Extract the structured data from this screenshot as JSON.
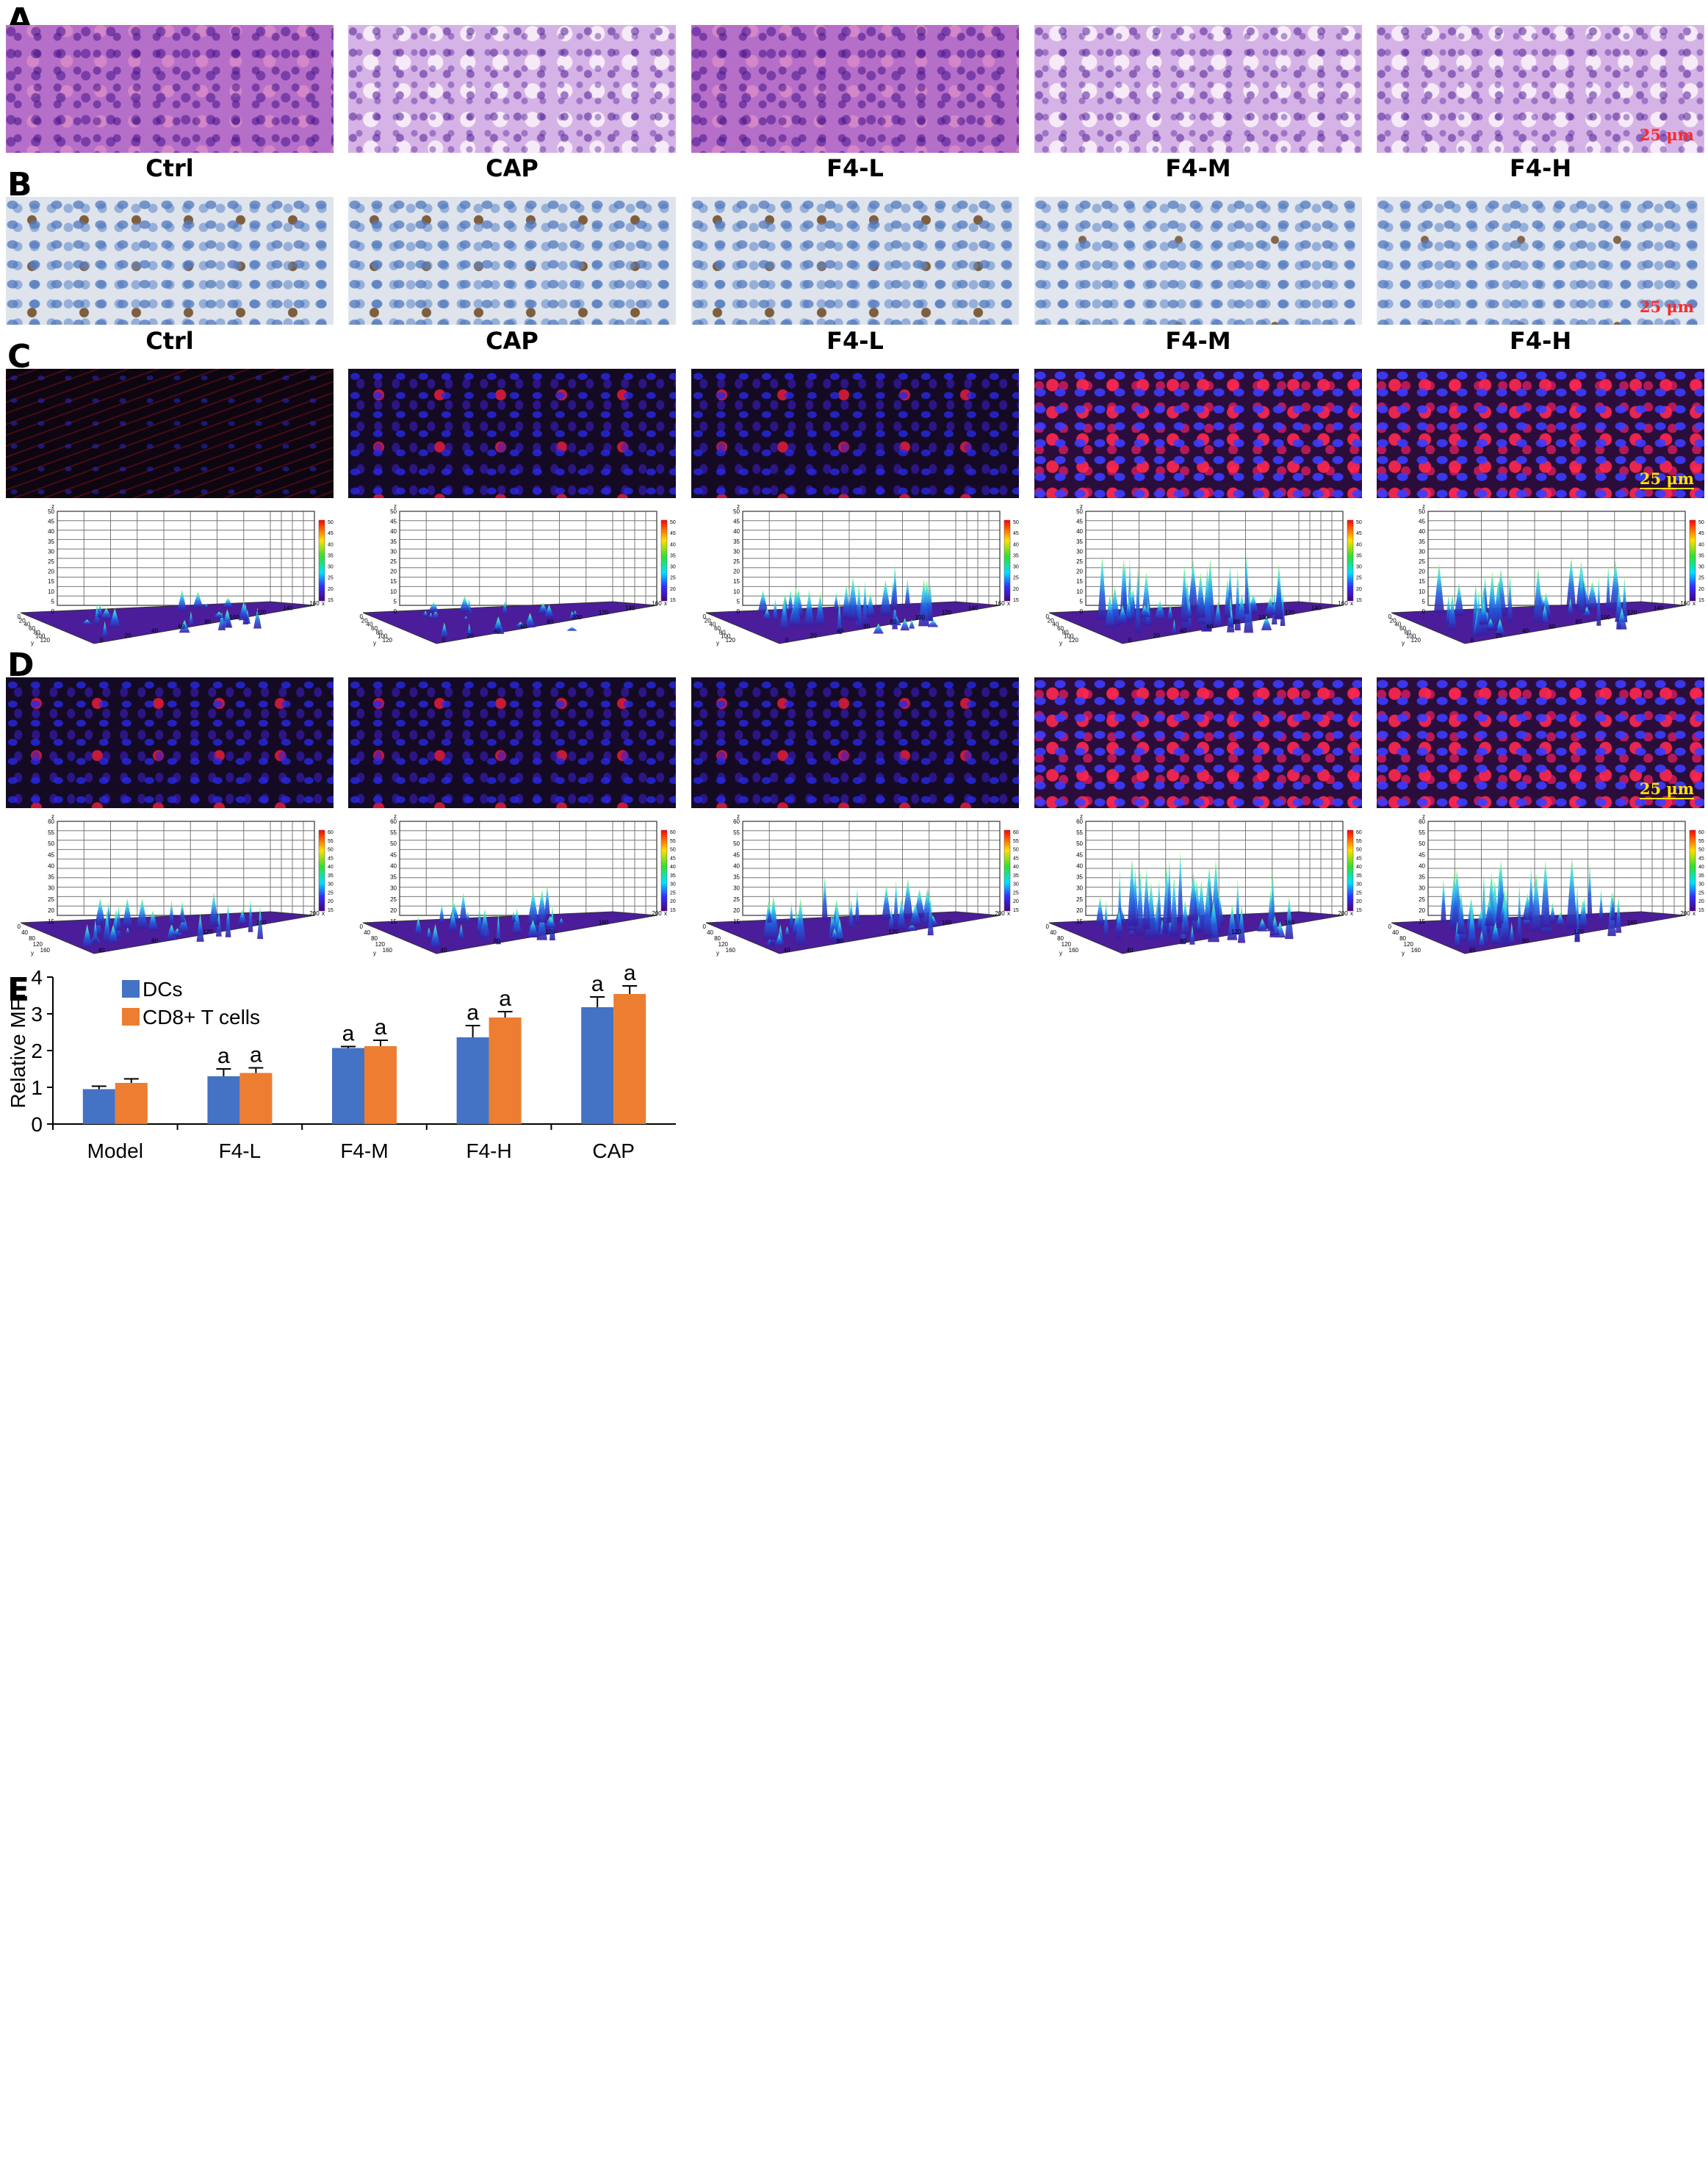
{
  "figure": {
    "panel_letters": [
      "A",
      "B",
      "C",
      "D",
      "E"
    ],
    "groups_AB": [
      "Ctrl",
      "CAP",
      "F4-L",
      "F4-M",
      "F4-H"
    ],
    "scale_label": "25 μm",
    "surface_C": {
      "z_ticks": [
        "0",
        "5",
        "10",
        "15",
        "20",
        "25",
        "30",
        "35",
        "40",
        "45",
        "50"
      ],
      "colorbar_ticks": [
        "50",
        "45",
        "40",
        "35",
        "30",
        "25",
        "20",
        "15"
      ],
      "x_ticks": [
        "0",
        "20",
        "40",
        "60",
        "80",
        "100",
        "120",
        "140",
        "160"
      ],
      "y_ticks": [
        "0",
        "20",
        "40",
        "60",
        "80",
        "100",
        "120"
      ],
      "x_label": "x",
      "y_label": "y",
      "z_label": "z",
      "peak_levels": [
        0.25,
        0.2,
        0.55,
        0.8,
        0.7
      ]
    },
    "surface_D": {
      "z_ticks": [
        "15",
        "20",
        "25",
        "30",
        "35",
        "40",
        "45",
        "50",
        "55",
        "60"
      ],
      "colorbar_ticks": [
        "60",
        "55",
        "50",
        "45",
        "40",
        "35",
        "30",
        "25",
        "20",
        "15"
      ],
      "x_ticks": [
        "40",
        "80",
        "120",
        "160",
        "200"
      ],
      "y_ticks": [
        "0",
        "40",
        "80",
        "120",
        "160"
      ],
      "x_label": "x",
      "y_label": "y",
      "z_label": "z",
      "peak_levels": [
        0.4,
        0.4,
        0.55,
        0.85,
        0.85
      ]
    }
  },
  "chart_data": {
    "type": "bar",
    "categories": [
      "Model",
      "F4-L",
      "F4-M",
      "F4-H",
      "CAP"
    ],
    "series": [
      {
        "name": "DCs",
        "color": "#4472c4",
        "values": [
          0.95,
          1.3,
          2.07,
          2.36,
          3.18
        ],
        "errors": [
          0.08,
          0.2,
          0.04,
          0.32,
          0.28
        ]
      },
      {
        "name": "CD8+ T cells",
        "color": "#ed7d31",
        "values": [
          1.12,
          1.39,
          2.12,
          2.9,
          3.54
        ],
        "errors": [
          0.11,
          0.14,
          0.16,
          0.16,
          0.22
        ]
      }
    ],
    "significance": [
      [
        "",
        "a",
        "a",
        "a",
        "a"
      ],
      [
        "",
        "a",
        "a",
        "a",
        "a"
      ]
    ],
    "ylabel": "Relative MFI",
    "ylim": [
      0,
      4
    ],
    "yticks": [
      "0",
      "1",
      "2",
      "3",
      "4"
    ],
    "legend": "top-left"
  }
}
